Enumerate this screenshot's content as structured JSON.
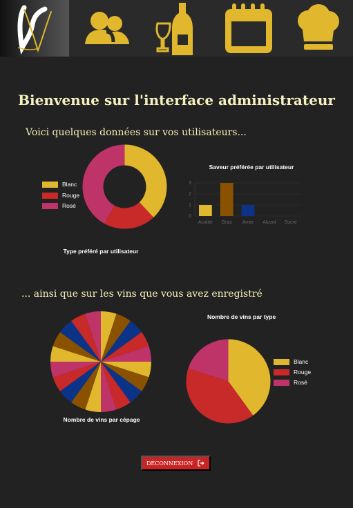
{
  "nav": {
    "logo_icon": "vinotheque-logo-icon",
    "items": [
      {
        "icon": "users-icon"
      },
      {
        "icon": "wine-icon"
      },
      {
        "icon": "calendar-icon"
      },
      {
        "icon": "chef-hat-icon"
      }
    ]
  },
  "main": {
    "title": "Bienvenue sur l'interface administrateur",
    "users_subtitle": "Voici quelques données sur vos utilisateurs...",
    "wines_subtitle": "... ainsi que sur les vins que vous avez enregistré"
  },
  "logout": {
    "label": "DÉCONNEXION",
    "icon": "logout-icon"
  },
  "colors": {
    "background": "#222222",
    "gold": "#e0b72d",
    "red": "#c82929",
    "rose": "#be3468",
    "brown": "#8a5200",
    "navy": "#0b3488"
  },
  "chart_data": [
    {
      "type": "pie",
      "title": "Type préféré par utilisateur",
      "donut": true,
      "legend_position": "left",
      "categories": [
        "Blanc",
        "Rouge",
        "Rosé"
      ],
      "values": [
        38,
        20,
        42
      ],
      "colors": [
        "#e0b72d",
        "#c82929",
        "#be3468"
      ]
    },
    {
      "type": "bar",
      "title": "Saveur préférée par utilisateur",
      "categories": [
        "Acidité",
        "Gras",
        "Amer",
        "Alcool",
        "Sucre"
      ],
      "values": [
        1,
        3,
        1,
        0,
        0
      ],
      "colors": [
        "#e0b72d",
        "#8a5200",
        "#0b3488",
        "#8a5200",
        "#0b3488"
      ],
      "ytick_labels": [
        "3",
        "2",
        "1",
        "0"
      ],
      "ylim": [
        0,
        3
      ]
    },
    {
      "type": "pie",
      "title": "Nombre de vins par cépage",
      "values": [
        1,
        1,
        1,
        1,
        1,
        1,
        1,
        1,
        1,
        1,
        1,
        1,
        1,
        1,
        1,
        1,
        1,
        1,
        1,
        1
      ],
      "colors": [
        "#e0b72d",
        "#8a5200",
        "#0b3488",
        "#c82929",
        "#be3468",
        "#e0b72d",
        "#8a5200",
        "#0b3488",
        "#c82929",
        "#be3468",
        "#e0b72d",
        "#8a5200",
        "#0b3488",
        "#c82929",
        "#be3468",
        "#e0b72d",
        "#8a5200",
        "#0b3488",
        "#c82929",
        "#be3468"
      ]
    },
    {
      "type": "pie",
      "title": "Nombre de vins par type",
      "legend_position": "right",
      "categories": [
        "Blanc",
        "Rouge",
        "Rosé"
      ],
      "values": [
        40,
        40,
        20
      ],
      "colors": [
        "#e0b72d",
        "#c82929",
        "#be3468"
      ]
    }
  ]
}
